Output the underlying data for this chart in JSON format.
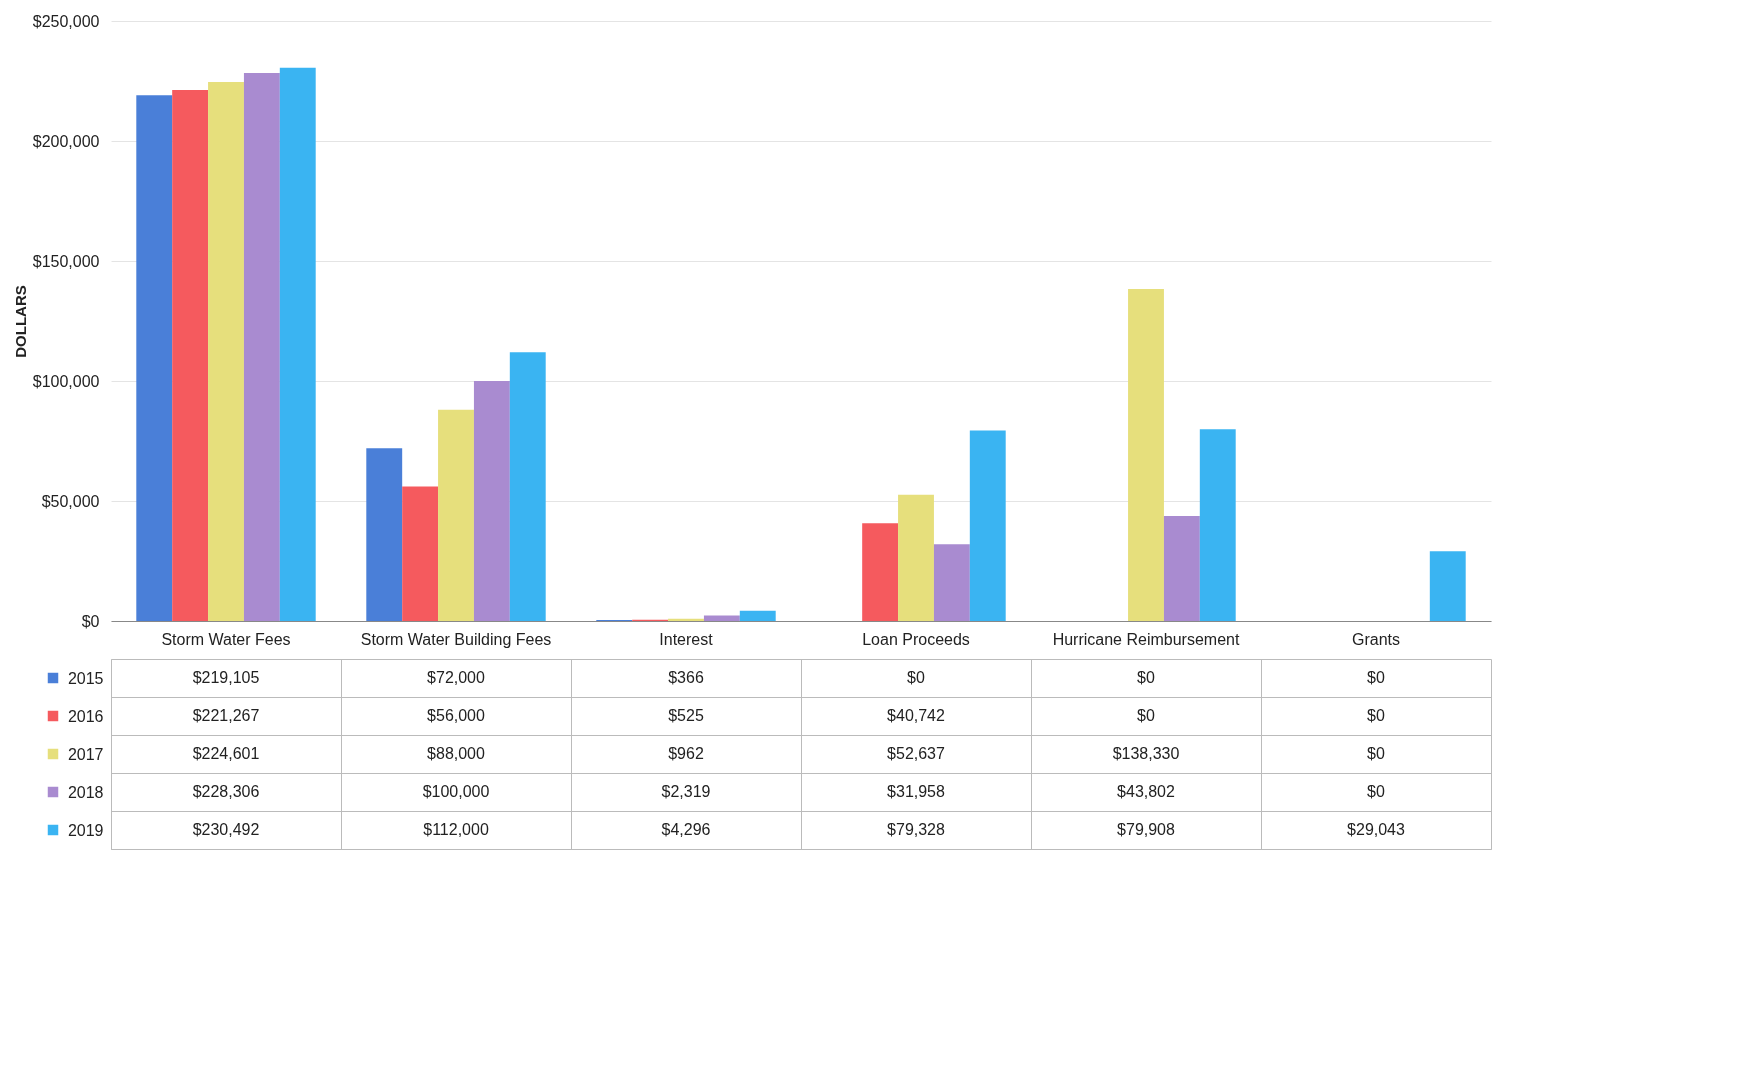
{
  "chart_data": {
    "type": "bar",
    "ylabel": "DOLLARS",
    "categories": [
      "Storm Water Fees",
      "Storm Water Building Fees",
      "Interest",
      "Loan Proceeds",
      "Hurricane Reimbursement",
      "Grants"
    ],
    "series": [
      {
        "name": "2015",
        "color": "#4a7fd8",
        "values": [
          219105,
          72000,
          366,
          0,
          0,
          0
        ],
        "value_labels": [
          "$219,105",
          "$72,000",
          "$366",
          "$0",
          "$0",
          "$0"
        ]
      },
      {
        "name": "2016",
        "color": "#f55a5e",
        "values": [
          221267,
          56000,
          525,
          40742,
          0,
          0
        ],
        "value_labels": [
          "$221,267",
          "$56,000",
          "$525",
          "$40,742",
          "$0",
          "$0"
        ]
      },
      {
        "name": "2017",
        "color": "#e6df7c",
        "values": [
          224601,
          88000,
          962,
          52637,
          138330,
          0
        ],
        "value_labels": [
          "$224,601",
          "$88,000",
          "$962",
          "$52,637",
          "$138,330",
          "$0"
        ]
      },
      {
        "name": "2018",
        "color": "#a98bd0",
        "values": [
          228306,
          100000,
          2319,
          31958,
          43802,
          0
        ],
        "value_labels": [
          "$228,306",
          "$100,000",
          "$2,319",
          "$31,958",
          "$43,802",
          "$0"
        ]
      },
      {
        "name": "2019",
        "color": "#3ab4f2",
        "values": [
          230492,
          112000,
          4296,
          79328,
          79908,
          29043
        ],
        "value_labels": [
          "$230,492",
          "$112,000",
          "$4,296",
          "$79,328",
          "$79,908",
          "$29,043"
        ]
      }
    ],
    "ylim": [
      0,
      250000
    ],
    "yticks": [
      {
        "value": 0,
        "label": "$0"
      },
      {
        "value": 50000,
        "label": "$50,000"
      },
      {
        "value": 100000,
        "label": "$100,000"
      },
      {
        "value": 150000,
        "label": "$150,000"
      },
      {
        "value": 200000,
        "label": "$200,000"
      },
      {
        "value": 250000,
        "label": "$250,000"
      }
    ],
    "grid": "y",
    "legend": "bottom left"
  }
}
